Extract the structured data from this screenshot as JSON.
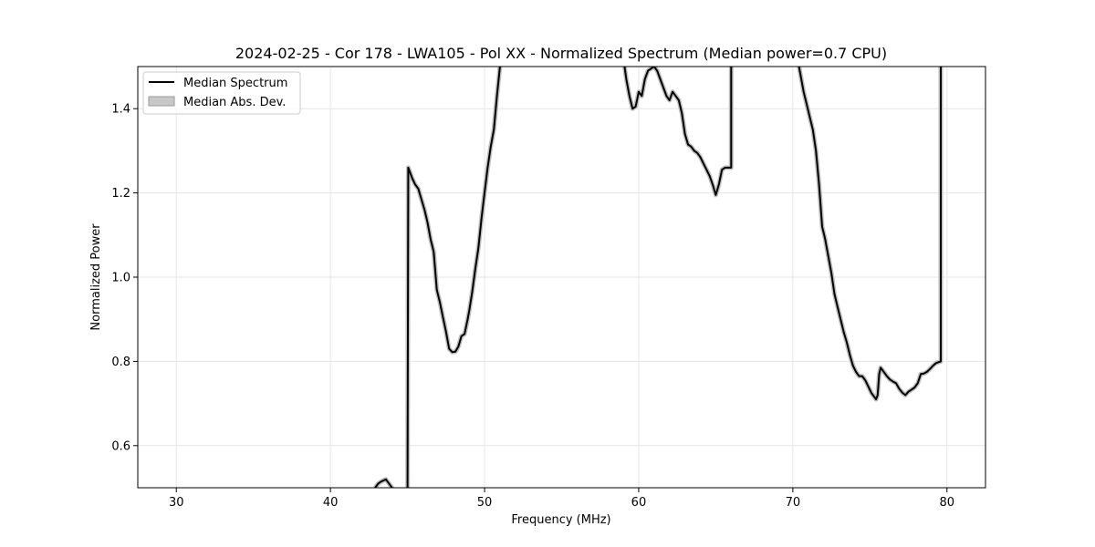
{
  "chart_data": {
    "type": "line",
    "title": "2024-02-25 - Cor 178 - LWA105 - Pol XX - Normalized Spectrum (Median power=0.7 CPU)",
    "xlabel": "Frequency (MHz)",
    "ylabel": "Normalized Power",
    "xlim": [
      27.5,
      82.5
    ],
    "ylim": [
      0.5,
      1.5
    ],
    "xticks": [
      30,
      40,
      50,
      60,
      70,
      80
    ],
    "yticks": [
      0.6,
      0.8,
      1.0,
      1.2,
      1.4
    ],
    "xtick_labels": [
      "30",
      "40",
      "50",
      "60",
      "70",
      "80"
    ],
    "ytick_labels": [
      "0.6",
      "0.8",
      "1.0",
      "1.2",
      "1.4"
    ],
    "grid": true,
    "legend_position": "top-left",
    "legend": [
      "Median Spectrum",
      "Median Abs. Dev."
    ],
    "colors": {
      "line": "#000000",
      "band": "#bfbfbf",
      "grid": "#e6e6e6"
    },
    "series": [
      {
        "name": "Median Spectrum",
        "x": [
          42.9,
          43.1,
          43.3,
          43.6,
          43.9,
          44.2,
          44.5,
          44.9,
          45.0,
          45.05,
          45.3,
          45.5,
          45.7,
          45.9,
          46.1,
          46.3,
          46.5,
          46.7,
          46.9,
          47.1,
          47.3,
          47.5,
          47.7,
          47.9,
          48.1,
          48.3,
          48.5,
          48.7,
          48.9,
          49.0,
          49.2,
          49.4,
          49.6,
          49.8,
          50.0,
          50.2,
          50.4,
          50.6,
          50.8,
          51.0,
          51.2,
          51.4,
          51.6,
          59.0,
          59.2,
          59.4,
          59.6,
          59.8,
          60.0,
          60.2,
          60.4,
          60.6,
          60.8,
          61.0,
          61.2,
          61.4,
          61.6,
          61.8,
          62.0,
          62.2,
          62.4,
          62.6,
          62.8,
          63.0,
          63.2,
          63.4,
          63.6,
          63.8,
          64.0,
          64.2,
          64.4,
          64.6,
          64.8,
          65.0,
          65.2,
          65.4,
          65.6,
          66.0,
          66.0,
          66.1,
          70.3,
          70.5,
          70.7,
          70.9,
          71.1,
          71.3,
          71.5,
          71.7,
          71.9,
          72.1,
          72.3,
          72.5,
          72.7,
          72.9,
          73.1,
          73.3,
          73.5,
          73.7,
          73.9,
          74.1,
          74.3,
          74.5,
          74.7,
          74.9,
          75.1,
          75.3,
          75.4,
          75.5,
          75.6,
          75.7,
          75.9,
          76.1,
          76.3,
          76.5,
          76.7,
          76.9,
          77.1,
          77.3,
          77.5,
          77.7,
          77.9,
          78.1,
          78.3,
          78.5,
          78.7,
          78.9,
          79.1,
          79.3,
          79.6,
          79.6,
          79.7
        ],
        "y": [
          0.5,
          0.51,
          0.515,
          0.52,
          0.505,
          0.49,
          0.49,
          0.49,
          0.49,
          1.26,
          1.235,
          1.22,
          1.21,
          1.185,
          1.16,
          1.13,
          1.09,
          1.06,
          0.97,
          0.94,
          0.905,
          0.87,
          0.83,
          0.822,
          0.823,
          0.835,
          0.86,
          0.865,
          0.9,
          0.92,
          0.965,
          1.02,
          1.07,
          1.14,
          1.2,
          1.26,
          1.31,
          1.35,
          1.43,
          1.5,
          1.56,
          1.6,
          1.62,
          1.52,
          1.47,
          1.43,
          1.4,
          1.405,
          1.44,
          1.43,
          1.47,
          1.49,
          1.495,
          1.5,
          1.49,
          1.47,
          1.45,
          1.43,
          1.42,
          1.44,
          1.43,
          1.42,
          1.39,
          1.34,
          1.315,
          1.31,
          1.3,
          1.295,
          1.285,
          1.27,
          1.255,
          1.24,
          1.22,
          1.195,
          1.22,
          1.255,
          1.26,
          1.26,
          1.6,
          1.6,
          1.52,
          1.48,
          1.44,
          1.41,
          1.38,
          1.35,
          1.3,
          1.22,
          1.12,
          1.09,
          1.05,
          1.01,
          0.96,
          0.93,
          0.9,
          0.87,
          0.845,
          0.815,
          0.79,
          0.775,
          0.765,
          0.765,
          0.755,
          0.74,
          0.725,
          0.715,
          0.71,
          0.72,
          0.77,
          0.785,
          0.775,
          0.765,
          0.757,
          0.752,
          0.748,
          0.735,
          0.726,
          0.72,
          0.728,
          0.733,
          0.738,
          0.748,
          0.77,
          0.771,
          0.775,
          0.782,
          0.79,
          0.796,
          0.8,
          1.6,
          1.6
        ]
      }
    ]
  }
}
